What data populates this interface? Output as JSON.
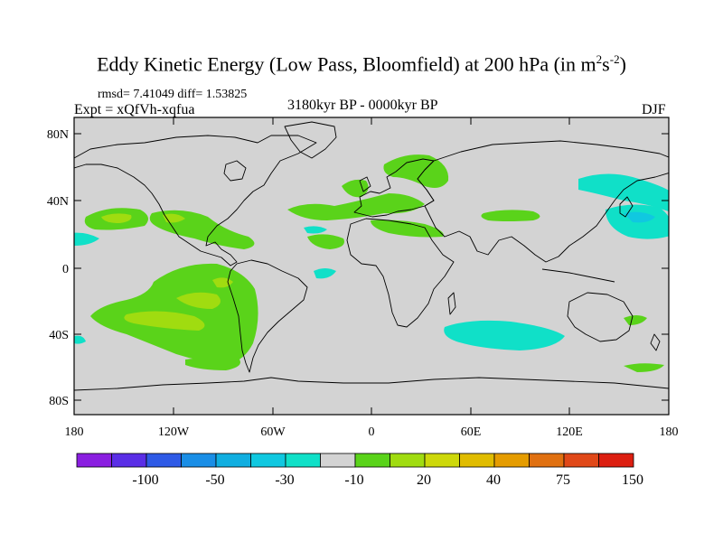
{
  "title": {
    "main": "Eddy Kinetic Energy (Low Pass, Bloomfield) at 200 hPa (in m",
    "sup1": "2",
    "mid": "s",
    "sup2": "-2",
    "end": ")"
  },
  "stats": "rmsd= 7.41049 diff= 1.53825",
  "experiment": "Expt = xQfVh-xqfua",
  "period": "3180kyr BP - 0000kyr BP",
  "season": "DJF",
  "map": {
    "ocean_color": "#d3d3d3",
    "lat_labels": [
      "80N",
      "40N",
      "0",
      "40S",
      "80S"
    ],
    "lon_labels": [
      "180",
      "120W",
      "60W",
      "0",
      "60E",
      "120E",
      "180"
    ]
  },
  "colorbar": {
    "colors": [
      "#8a1ee0",
      "#5a2ee6",
      "#2e5ae6",
      "#1a8ee6",
      "#10aee0",
      "#10c8e0",
      "#10e0c8",
      "#d3d3d3",
      "#5ad31a",
      "#a0dc10",
      "#cdd80a",
      "#e0bc00",
      "#e59c00",
      "#e07010",
      "#e04818",
      "#dc1e10"
    ],
    "labels": [
      "-100",
      "-50",
      "-30",
      "-10",
      "20",
      "40",
      "75",
      "150"
    ]
  },
  "colors": {
    "green": "#5ad31a",
    "yellowgreen": "#a0dc10",
    "cyan": "#10e0c8",
    "skyblue": "#10c8e0",
    "coast": "#000000"
  }
}
